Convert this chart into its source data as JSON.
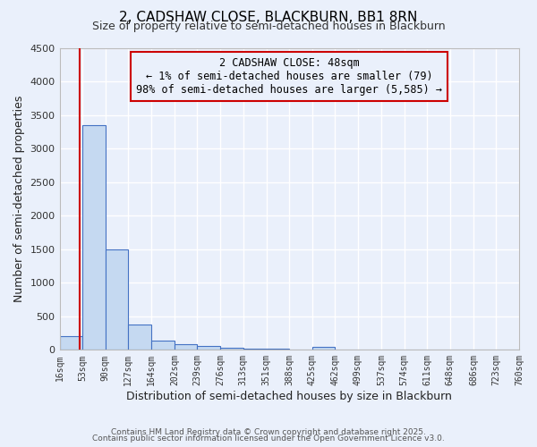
{
  "title_line1": "2, CADSHAW CLOSE, BLACKBURN, BB1 8RN",
  "title_line2": "Size of property relative to semi-detached houses in Blackburn",
  "xlabel": "Distribution of semi-detached houses by size in Blackburn",
  "ylabel": "Number of semi-detached properties",
  "bin_edges": [
    16,
    53,
    90,
    127,
    164,
    202,
    239,
    276,
    313,
    351,
    388,
    425,
    462,
    499,
    537,
    574,
    611,
    648,
    686,
    723,
    760
  ],
  "bin_labels": [
    "16sqm",
    "53sqm",
    "90sqm",
    "127sqm",
    "164sqm",
    "202sqm",
    "239sqm",
    "276sqm",
    "313sqm",
    "351sqm",
    "388sqm",
    "425sqm",
    "462sqm",
    "499sqm",
    "537sqm",
    "574sqm",
    "611sqm",
    "648sqm",
    "686sqm",
    "723sqm",
    "760sqm"
  ],
  "bar_heights": [
    200,
    3350,
    1500,
    380,
    140,
    85,
    55,
    30,
    20,
    15,
    5,
    40,
    0,
    0,
    0,
    0,
    0,
    0,
    0,
    0
  ],
  "bar_color": "#c5d9f1",
  "bar_edge_color": "#4472c4",
  "bg_color": "#eaf0fb",
  "grid_color": "#ffffff",
  "red_line_x": 48,
  "annotation_text": "2 CADSHAW CLOSE: 48sqm\n← 1% of semi-detached houses are smaller (79)\n98% of semi-detached houses are larger (5,585) →",
  "annotation_box_color": "#cc0000",
  "ylim": [
    0,
    4500
  ],
  "yticks": [
    0,
    500,
    1000,
    1500,
    2000,
    2500,
    3000,
    3500,
    4000,
    4500
  ],
  "footer_line1": "Contains HM Land Registry data © Crown copyright and database right 2025.",
  "footer_line2": "Contains public sector information licensed under the Open Government Licence v3.0."
}
